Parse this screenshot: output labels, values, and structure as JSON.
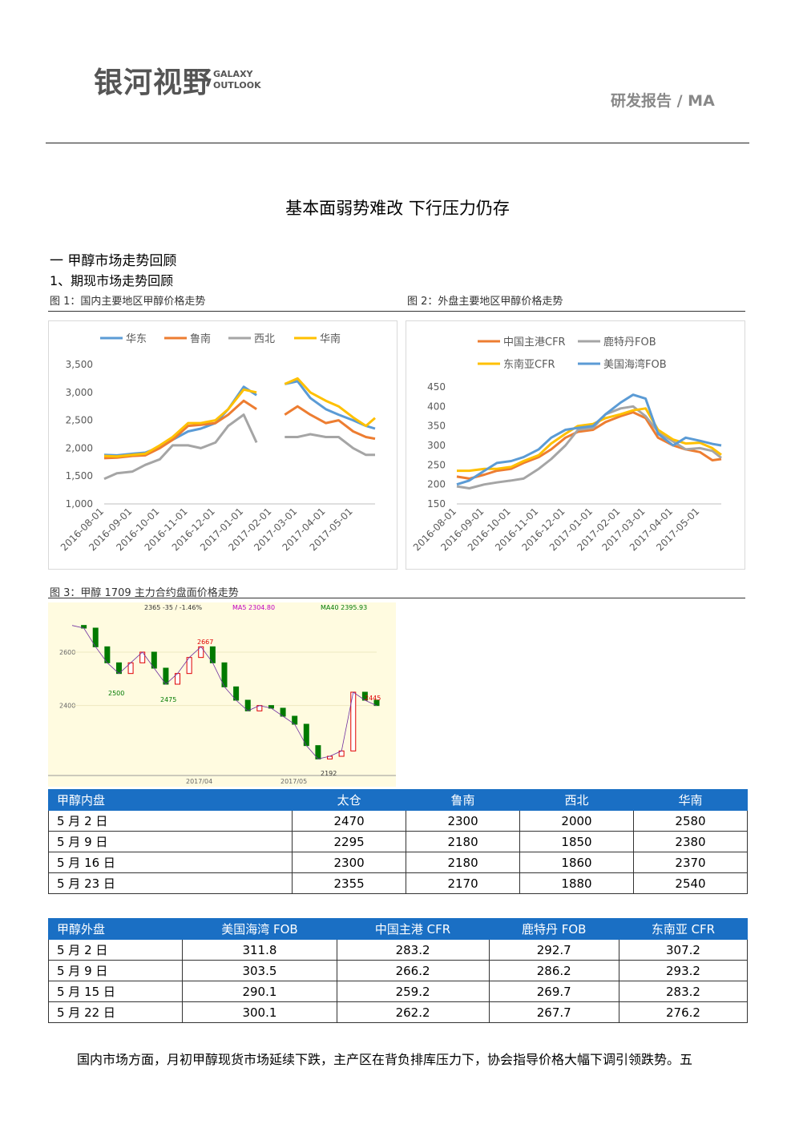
{
  "header": {
    "logo": "银河视野",
    "logo_small_1": "GALAXY",
    "logo_small_2": "OUTLOOK",
    "report": "研发报告 / MA"
  },
  "title": "基本面弱势难改  下行压力仍存",
  "section": "一  甲醇市场走势回顾",
  "subsection": "1、期现市场走势回顾",
  "chart_data": [
    {
      "type": "line",
      "caption": "图 1：国内主要地区甲醇价格走势",
      "x": [
        "2016-08-01",
        "2016-08-15",
        "2016-09-01",
        "2016-09-15",
        "2016-10-01",
        "2016-10-15",
        "2016-11-01",
        "2016-11-15",
        "2016-12-01",
        "2016-12-15",
        "2017-01-01",
        "2017-01-15",
        "2017-02-01",
        "2017-02-15",
        "2017-03-01",
        "2017-03-15",
        "2017-04-01",
        "2017-04-15",
        "2017-05-01",
        "2017-05-15",
        "2017-05-25"
      ],
      "xlim": [
        "2016-08-01",
        "2017-05-25"
      ],
      "xticks": [
        "2016-08-01",
        "2016-09-01",
        "2016-10-01",
        "2016-11-01",
        "2016-12-01",
        "2017-01-01",
        "2017-02-01",
        "2017-03-01",
        "2017-04-01",
        "2017-05-01"
      ],
      "ylim": [
        1000,
        3500
      ],
      "yticks": [
        {
          "value": 1000,
          "label": "1,000"
        },
        {
          "value": 1500,
          "label": "1,500"
        },
        {
          "value": 2000,
          "label": "2,000"
        },
        {
          "value": 2500,
          "label": "2,500"
        },
        {
          "value": 3000,
          "label": "3,000"
        },
        {
          "value": 3500,
          "label": "3,500"
        }
      ],
      "series": [
        {
          "name": "华东",
          "color": "#5b9bd5",
          "values": [
            1880,
            1870,
            1900,
            1920,
            2020,
            2150,
            2300,
            2350,
            2450,
            2700,
            3100,
            2950,
            null,
            3150,
            3200,
            2900,
            2700,
            2600,
            2500,
            2400,
            2350
          ]
        },
        {
          "name": "鲁南",
          "color": "#ed7d31",
          "values": [
            1820,
            1830,
            1860,
            1870,
            2000,
            2150,
            2400,
            2420,
            2450,
            2600,
            2850,
            2700,
            null,
            2600,
            2750,
            2600,
            2450,
            2500,
            2300,
            2200,
            2170
          ]
        },
        {
          "name": "西北",
          "color": "#a5a5a5",
          "values": [
            1450,
            1550,
            1580,
            1700,
            1800,
            2050,
            2050,
            2000,
            2100,
            2400,
            2600,
            2100,
            null,
            2200,
            2200,
            2250,
            2200,
            2200,
            2000,
            1880,
            1880
          ]
        },
        {
          "name": "华南",
          "color": "#ffc000",
          "values": [
            1860,
            1850,
            1880,
            1900,
            2050,
            2200,
            2450,
            2450,
            2500,
            2700,
            3050,
            3000,
            null,
            3150,
            3250,
            3000,
            2850,
            2750,
            2550,
            2400,
            2540
          ]
        }
      ]
    },
    {
      "type": "line",
      "caption": "图 2：外盘主要地区甲醇价格走势",
      "x": [
        "2016-08-01",
        "2016-08-15",
        "2016-09-01",
        "2016-09-15",
        "2016-10-01",
        "2016-10-15",
        "2016-11-01",
        "2016-11-15",
        "2016-12-01",
        "2016-12-15",
        "2017-01-01",
        "2017-01-15",
        "2017-02-01",
        "2017-02-15",
        "2017-03-01",
        "2017-03-15",
        "2017-04-01",
        "2017-04-15",
        "2017-05-01",
        "2017-05-15",
        "2017-05-25"
      ],
      "xlim": [
        "2016-08-01",
        "2017-05-25"
      ],
      "xticks": [
        "2016-08-01",
        "2016-09-01",
        "2016-10-01",
        "2016-11-01",
        "2016-12-01",
        "2017-01-01",
        "2017-02-01",
        "2017-03-01",
        "2017-04-01",
        "2017-05-01"
      ],
      "ylim": [
        150,
        450
      ],
      "yticks": [
        150,
        200,
        250,
        300,
        350,
        400,
        450
      ],
      "series": [
        {
          "name": "中国主港CFR",
          "color": "#ed7d31",
          "values": [
            220,
            215,
            225,
            235,
            240,
            255,
            270,
            290,
            320,
            335,
            340,
            360,
            375,
            385,
            370,
            320,
            300,
            290,
            283,
            262,
            265
          ]
        },
        {
          "name": "鹿特丹FOB",
          "color": "#a5a5a5",
          "values": [
            195,
            190,
            200,
            205,
            210,
            215,
            240,
            265,
            300,
            340,
            345,
            380,
            395,
            400,
            375,
            335,
            310,
            290,
            293,
            286,
            268
          ]
        },
        {
          "name": "东南亚CFR",
          "color": "#ffc000",
          "values": [
            235,
            235,
            240,
            240,
            245,
            260,
            275,
            305,
            330,
            350,
            355,
            370,
            380,
            390,
            395,
            340,
            315,
            305,
            307,
            293,
            276
          ]
        },
        {
          "name": "美国海湾FOB",
          "color": "#5b9bd5",
          "values": [
            200,
            210,
            235,
            255,
            260,
            270,
            290,
            320,
            340,
            345,
            350,
            380,
            410,
            430,
            420,
            330,
            300,
            320,
            312,
            304,
            300
          ]
        }
      ]
    },
    {
      "type": "kline",
      "caption": "图 3：甲醇 1709 主力合约盘面价格走势",
      "legend": [
        "2365 -35 / -1.46%",
        "MA5 2304.80",
        "MA40 2395.93"
      ],
      "ylim": [
        2150,
        2750
      ],
      "yticks": [
        2400,
        2600
      ],
      "values": [
        2700,
        2690,
        2620,
        2560,
        2520,
        2560,
        2600,
        2540,
        2480,
        2520,
        2580,
        2620,
        2560,
        2470,
        2420,
        2380,
        2400,
        2390,
        2360,
        2330,
        2250,
        2200,
        2210,
        2230,
        2450,
        2420,
        2400
      ],
      "color": "#007a00",
      "annotations": [
        "2500",
        "2475",
        "2667",
        "2445",
        "2192"
      ],
      "x_labels": [
        "2017/04",
        "2017/05"
      ]
    }
  ],
  "table1": {
    "header": [
      "甲醇内盘",
      "太仓",
      "鲁南",
      "西北",
      "华南"
    ],
    "rows": [
      [
        "5 月 2 日",
        2470,
        2300,
        2000,
        2580
      ],
      [
        "5 月 9 日",
        2295,
        2180,
        1850,
        2380
      ],
      [
        "5 月 16 日",
        2300,
        2180,
        1860,
        2370
      ],
      [
        "5 月 23 日",
        2355,
        2170,
        1880,
        2540
      ]
    ]
  },
  "table2": {
    "header": [
      "甲醇外盘",
      "美国海湾 FOB",
      "中国主港 CFR",
      "鹿特丹 FOB",
      "东南亚 CFR"
    ],
    "rows": [
      [
        "5 月 2 日",
        311.8,
        283.2,
        292.7,
        307.2
      ],
      [
        "5 月 9 日",
        303.5,
        266.2,
        286.2,
        293.2
      ],
      [
        "5 月 15 日",
        290.1,
        259.2,
        269.7,
        283.2
      ],
      [
        "5 月 22 日",
        300.1,
        262.2,
        267.7,
        276.2
      ]
    ]
  },
  "paragraph": "国内市场方面，月初甲醇现货市场延续下跌，主产区在背负排库压力下，协会指导价格大幅下调引领跌势。五"
}
